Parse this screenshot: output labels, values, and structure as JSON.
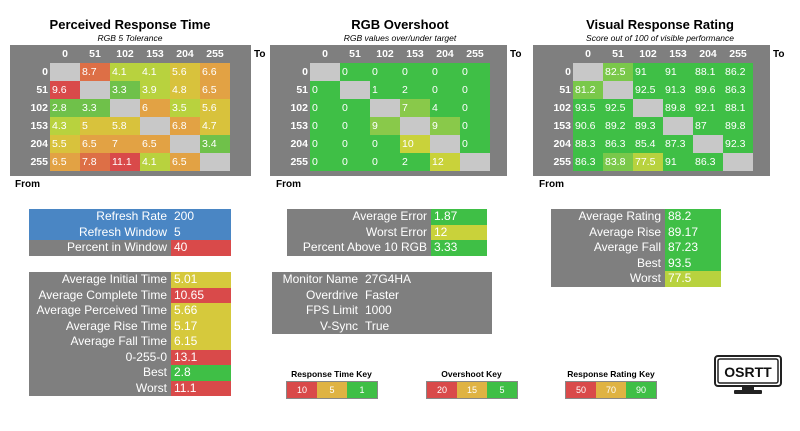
{
  "colors": {
    "red": "#d94a4a",
    "orange": "#e39b44",
    "yellow": "#cfd63a",
    "green": "#46b54f",
    "green_bright": "#3fbf46",
    "blue": "#4a86c4",
    "gray": "#7f7f7f",
    "blank": "#c8c8c8"
  },
  "heatmaps": {
    "columns": [
      "0",
      "51",
      "102",
      "153",
      "204",
      "255"
    ],
    "rows": [
      "0",
      "51",
      "102",
      "153",
      "204",
      "255"
    ],
    "to_label": "To",
    "from_label": "From",
    "perceived": {
      "title": "Perceived Response Time",
      "subtitle": "RGB 5 Tolerance",
      "cells": [
        [
          "",
          "8.7",
          "4.1",
          "4.1",
          "5.6",
          "6.6"
        ],
        [
          "9.6",
          "",
          "3.3",
          "3.9",
          "4.8",
          "6.5"
        ],
        [
          "2.8",
          "3.3",
          "",
          "6",
          "3.5",
          "5.6"
        ],
        [
          "4.3",
          "5",
          "5.8",
          "",
          "6.8",
          "4.7"
        ],
        [
          "5.5",
          "6.5",
          "7",
          "6.5",
          "",
          "3.4"
        ],
        [
          "6.5",
          "7.8",
          "11.1",
          "4.1",
          "6.5",
          ""
        ]
      ]
    },
    "overshoot": {
      "title": "RGB Overshoot",
      "subtitle": "RGB values over/under target",
      "cells": [
        [
          "",
          "0",
          "0",
          "0",
          "0",
          "0"
        ],
        [
          "0",
          "",
          "1",
          "2",
          "0",
          "0"
        ],
        [
          "0",
          "0",
          "",
          "7",
          "4",
          "0"
        ],
        [
          "0",
          "0",
          "9",
          "",
          "9",
          "0"
        ],
        [
          "0",
          "0",
          "0",
          "10",
          "",
          "0"
        ],
        [
          "0",
          "0",
          "0",
          "2",
          "12",
          ""
        ]
      ]
    },
    "rating": {
      "title": "Visual Response Rating",
      "subtitle": "Score out of 100 of visible performance",
      "cells": [
        [
          "",
          "82.5",
          "91",
          "91",
          "88.1",
          "86.2"
        ],
        [
          "81.2",
          "",
          "92.5",
          "91.3",
          "89.6",
          "86.3"
        ],
        [
          "93.5",
          "92.5",
          "",
          "89.8",
          "92.1",
          "88.1"
        ],
        [
          "90.6",
          "89.2",
          "89.3",
          "",
          "87",
          "89.8"
        ],
        [
          "88.3",
          "86.3",
          "85.4",
          "87.3",
          "",
          "92.3"
        ],
        [
          "86.3",
          "83.8",
          "77.5",
          "91",
          "86.3",
          ""
        ]
      ]
    }
  },
  "refresh": {
    "rows": [
      {
        "label": "Refresh Rate",
        "value": "200"
      },
      {
        "label": "Refresh Window",
        "value": "5"
      },
      {
        "label": "Percent in Window",
        "value": "40"
      }
    ]
  },
  "times": {
    "rows": [
      {
        "label": "Average Initial Time",
        "value": "5.01"
      },
      {
        "label": "Average Complete Time",
        "value": "10.65"
      },
      {
        "label": "Average Perceived Time",
        "value": "5.66"
      },
      {
        "label": "Average Rise Time",
        "value": "5.17"
      },
      {
        "label": "Average Fall Time",
        "value": "6.15"
      },
      {
        "label": "0-255-0",
        "value": "13.1"
      },
      {
        "label": "Best",
        "value": "2.8"
      },
      {
        "label": "Worst",
        "value": "11.1"
      }
    ]
  },
  "errors": {
    "rows": [
      {
        "label": "Average Error",
        "value": "1.87"
      },
      {
        "label": "Worst Error",
        "value": "12"
      },
      {
        "label": "Percent Above 10 RGB",
        "value": "3.33"
      }
    ]
  },
  "monitor": {
    "rows": [
      {
        "label": "Monitor Name",
        "value": "27G4HA"
      },
      {
        "label": "Overdrive",
        "value": "Faster"
      },
      {
        "label": "FPS Limit",
        "value": "1000"
      },
      {
        "label": "V-Sync",
        "value": "True"
      }
    ]
  },
  "ratings": {
    "rows": [
      {
        "label": "Average Rating",
        "value": "88.2"
      },
      {
        "label": "Average Rise",
        "value": "89.17"
      },
      {
        "label": "Average Fall",
        "value": "87.23"
      },
      {
        "label": "Best",
        "value": "93.5"
      },
      {
        "label": "Worst",
        "value": "77.5"
      }
    ]
  },
  "keys": {
    "response": {
      "title": "Response Time Key",
      "values": [
        "10",
        "5",
        "1"
      ]
    },
    "overshoot": {
      "title": "Overshoot Key",
      "values": [
        "20",
        "15",
        "5"
      ]
    },
    "rating": {
      "title": "Response Rating Key",
      "values": [
        "50",
        "70",
        "90"
      ]
    }
  },
  "logo": {
    "text": "OSRTT",
    "icon": "monitor-logo-icon"
  }
}
